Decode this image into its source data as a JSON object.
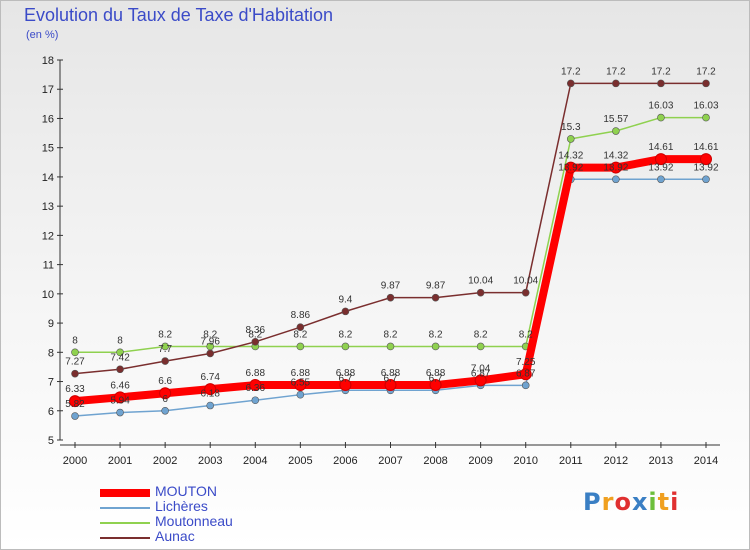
{
  "header": {
    "title": "Evolution du Taux de Taxe d'Habitation",
    "unit": "(en %)"
  },
  "logo": {
    "text": "Proxiti"
  },
  "chart_data": {
    "type": "line",
    "title": "Evolution du Taux de Taxe d'Habitation",
    "ylabel": "(en %)",
    "xlabel": "",
    "categories": [
      "2000",
      "2001",
      "2002",
      "2003",
      "2004",
      "2005",
      "2006",
      "2007",
      "2008",
      "2009",
      "2010",
      "2011",
      "2012",
      "2013",
      "2014"
    ],
    "ylim": [
      5,
      18
    ],
    "yticks": [
      5,
      6,
      7,
      8,
      9,
      10,
      11,
      12,
      13,
      14,
      15,
      16,
      17,
      18
    ],
    "grid": false,
    "legend_position": "bottom-left",
    "series": [
      {
        "name": "MOUTON",
        "color": "#ff0000",
        "values": [
          6.33,
          6.46,
          6.6,
          6.74,
          6.88,
          6.88,
          6.88,
          6.88,
          6.88,
          7.04,
          7.25,
          14.32,
          14.32,
          14.61,
          14.61
        ],
        "labels": [
          "6.33",
          "6.46",
          "6.6",
          "6.74",
          "6.88",
          "6.88",
          "6.88",
          "6.88",
          "6.88",
          "7.04",
          "7.25",
          "14.32",
          "14.32",
          "14.61",
          "14.61"
        ]
      },
      {
        "name": "Lichères",
        "color": "#6fa3d0",
        "values": [
          5.82,
          5.94,
          6.0,
          6.18,
          6.36,
          6.55,
          6.7,
          6.7,
          6.7,
          6.87,
          6.87,
          13.92,
          13.92,
          13.92,
          13.92
        ],
        "labels": [
          "5.82",
          "5.94",
          "6",
          "6.18",
          "6.36",
          "6.55",
          "6.7",
          "6.7",
          "6.7",
          "6.87",
          "6.87",
          "13.92",
          "13.92",
          "13.92",
          "13.92"
        ]
      },
      {
        "name": "Moutonneau",
        "color": "#8fd14f",
        "values": [
          8,
          8,
          8.2,
          8.2,
          8.2,
          8.2,
          8.2,
          8.2,
          8.2,
          8.2,
          8.2,
          15.3,
          15.57,
          16.03,
          16.03
        ],
        "labels": [
          "8",
          "8",
          "8.2",
          "8.2",
          "8.2",
          "8.2",
          "8.2",
          "8.2",
          "8.2",
          "8.2",
          "8.2",
          "15.3",
          "15.57",
          "16.03",
          "16.03"
        ]
      },
      {
        "name": "Aunac",
        "color": "#7a2e2e",
        "values": [
          7.27,
          7.42,
          7.7,
          7.96,
          8.36,
          8.86,
          9.4,
          9.87,
          9.87,
          10.04,
          10.04,
          17.2,
          17.2,
          17.2,
          17.2
        ],
        "labels": [
          "7.27",
          "7.42",
          "7.7",
          "7.96",
          "8.36",
          "8.86",
          "9.4",
          "9.87",
          "9.87",
          "10.04",
          "10.04",
          "17.2",
          "17.2",
          "17.2",
          "17.2"
        ]
      }
    ]
  }
}
